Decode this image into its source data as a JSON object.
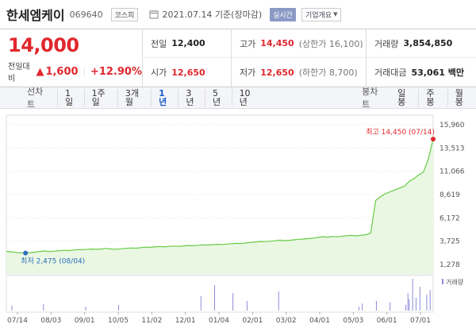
{
  "header": {
    "name": "한세엠케이",
    "code": "069640",
    "market": "코스피",
    "date": "2021.07.14 기준(장마감)",
    "realtime": "실시간",
    "company_info": "기업개요"
  },
  "price": {
    "current": "14,000",
    "change_label": "전일대비",
    "change_symbol": "▲",
    "change": "1,600",
    "sep": "|",
    "change_pct": "+12.90%"
  },
  "stats": {
    "prev_label": "전일",
    "prev": "12,400",
    "high_label": "고가",
    "high": "14,450",
    "upper_limit": "(상한가 16,100)",
    "volume_label": "거래량",
    "volume": "3,854,850",
    "open_label": "시가",
    "open": "12,650",
    "low_label": "저가",
    "low": "12,650",
    "lower_limit": "(하한가 8,700)",
    "amount_label": "거래대금",
    "amount": "53,061 백만"
  },
  "tabs": {
    "line_label": "선차트",
    "periods": [
      "1일",
      "1주일",
      "3개월",
      "1년",
      "3년",
      "5년",
      "10년"
    ],
    "active": "1년",
    "candle_label": "봉차트",
    "candle_periods": [
      "일봉",
      "주봉",
      "월봉"
    ]
  },
  "colors": {
    "up": "#e0272d",
    "line": "#66cc44",
    "fill": "#eaf7e3",
    "low_marker": "#2a6fc0",
    "high_marker": "#e0272d",
    "active_tab": "#1a5cc8"
  },
  "chart_data": {
    "type": "area",
    "y_ticks": [
      "15,960",
      "13,513",
      "11,066",
      "8,619",
      "6,172",
      "3,725",
      "1,278"
    ],
    "ylim": [
      1278,
      15960
    ],
    "x_labels": [
      "07/14",
      "08/03",
      "09/01",
      "10/05",
      "11/02",
      "12/01",
      "01/04",
      "02/01",
      "03/02",
      "04/01",
      "05/03",
      "06/01",
      "07/01"
    ],
    "max_annotation": "최고 14,450 (07/14)",
    "min_annotation": "최저 2,475 (08/04)",
    "volume_legend": "거래량",
    "series": [
      {
        "values": [
          2650,
          2610,
          2550,
          2500,
          2475,
          2520,
          2580,
          2650,
          2700,
          2640,
          2680,
          2720,
          2760,
          2740,
          2800,
          2850,
          2830,
          2880,
          2900,
          2870,
          2920,
          2960,
          2900,
          2880,
          2930,
          2970,
          3010,
          2990,
          3050,
          3100,
          3080,
          3120,
          3160,
          3130,
          3170,
          3210,
          3180,
          3230,
          3270,
          3250,
          3300,
          3340,
          3310,
          3360,
          3400,
          3380,
          3420,
          3460,
          3500,
          3470,
          3540,
          3600,
          3650,
          3700,
          3680,
          3720,
          3760,
          3830,
          3780,
          3810,
          3860,
          3920,
          3950,
          4000,
          4050,
          4120,
          4200,
          4150,
          4220,
          4180,
          4260,
          4300,
          4330,
          4280,
          4350,
          4400,
          4600,
          8000,
          8400,
          8700,
          8900,
          9100,
          9300,
          9500,
          10000,
          10300,
          10700,
          11000,
          12400,
          14450
        ]
      }
    ]
  },
  "volume_data": {
    "bars": [
      {
        "pos": 0.012,
        "v": 0.15
      },
      {
        "pos": 0.086,
        "v": 0.2
      },
      {
        "pos": 0.185,
        "v": 0.12
      },
      {
        "pos": 0.262,
        "v": 0.18
      },
      {
        "pos": 0.455,
        "v": 0.45
      },
      {
        "pos": 0.487,
        "v": 0.8
      },
      {
        "pos": 0.53,
        "v": 0.55
      },
      {
        "pos": 0.563,
        "v": 0.3
      },
      {
        "pos": 0.637,
        "v": 0.6
      },
      {
        "pos": 0.825,
        "v": 0.12
      },
      {
        "pos": 0.833,
        "v": 0.22
      },
      {
        "pos": 0.866,
        "v": 0.3
      },
      {
        "pos": 0.898,
        "v": 0.26
      },
      {
        "pos": 0.935,
        "v": 0.18
      },
      {
        "pos": 0.94,
        "v": 0.55
      },
      {
        "pos": 0.943,
        "v": 0.35
      },
      {
        "pos": 0.951,
        "v": 1.0
      },
      {
        "pos": 0.959,
        "v": 0.4
      },
      {
        "pos": 0.968,
        "v": 0.75
      },
      {
        "pos": 0.984,
        "v": 0.5
      },
      {
        "pos": 0.992,
        "v": 0.65
      }
    ]
  }
}
